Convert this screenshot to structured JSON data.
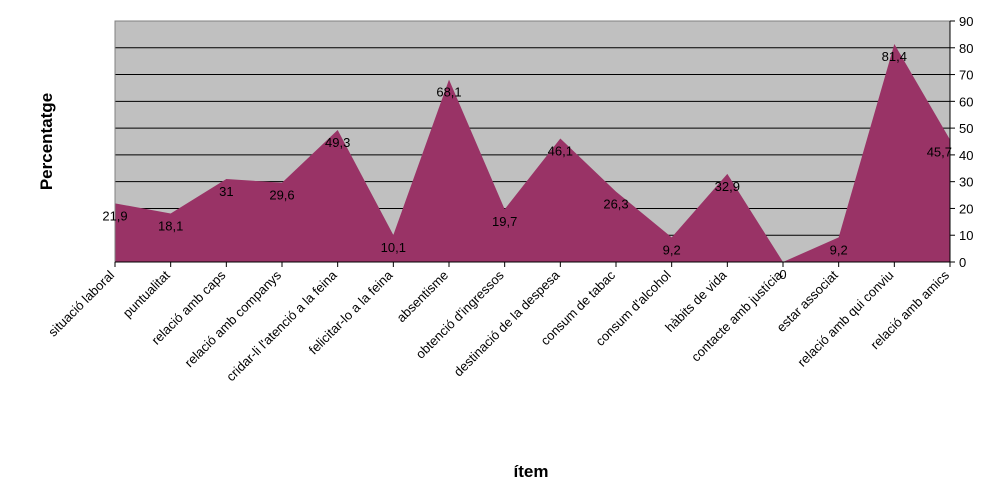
{
  "chart_data": {
    "type": "area",
    "xlabel": "ítem",
    "ylabel": "Percentatge",
    "ylim": [
      0,
      90
    ],
    "yticks": [
      0,
      10,
      20,
      30,
      40,
      50,
      60,
      70,
      80,
      90
    ],
    "grid": true,
    "categories": [
      "situació laboral",
      "puntualitat",
      "relació amb caps",
      "relació amb companys",
      "cridar-li l'atenció a la feina",
      "felicitar-lo a la feina",
      "absentisme",
      "obtenció d'ingressos",
      "destinació de la despesa",
      "consum de tabac",
      "consum d'alcohol",
      "hàbits de vida",
      "contacte amb justícia",
      "estar associat",
      "relació amb qui conviu",
      "relació amb amics"
    ],
    "values": [
      21.9,
      18.1,
      31,
      29.6,
      49.3,
      10.1,
      68.1,
      19.7,
      46.1,
      26.3,
      9.2,
      32.9,
      0,
      9.2,
      81.4,
      45.7
    ],
    "data_labels": [
      "21,9",
      "18,1",
      "31",
      "29,6",
      "49,3",
      "10,1",
      "68,1",
      "19,7",
      "46,1",
      "26,3",
      "9,2",
      "32,9",
      "0",
      "9,2",
      "81,4",
      "45,7"
    ],
    "colors": {
      "area_fill": "#993366",
      "plot_background": "#c0c0c0",
      "gridline": "#000000"
    }
  }
}
